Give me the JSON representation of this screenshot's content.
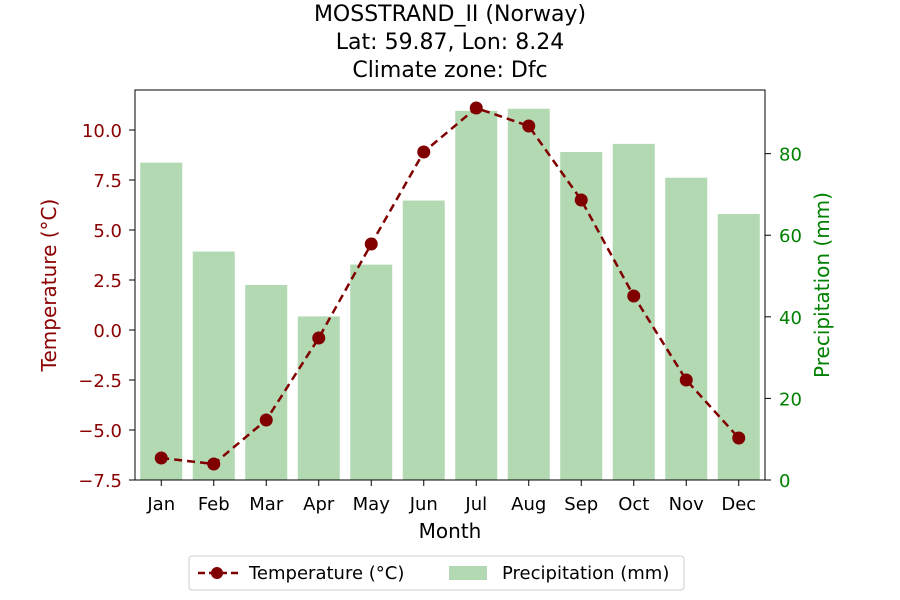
{
  "chart_data": {
    "type": "bar+line",
    "title_lines": [
      "MOSSTRAND_II (Norway)",
      "Lat: 59.87, Lon: 8.24",
      "Climate zone: Dfc"
    ],
    "xlabel": "Month",
    "ylabel_left": "Temperature (°C)",
    "ylabel_right": "Precipitation (mm)",
    "categories": [
      "Jan",
      "Feb",
      "Mar",
      "Apr",
      "May",
      "Jun",
      "Jul",
      "Aug",
      "Sep",
      "Oct",
      "Nov",
      "Dec"
    ],
    "temperature": {
      "name": "Temperature (°C)",
      "values": [
        -6.4,
        -6.7,
        -4.5,
        -0.4,
        4.3,
        8.9,
        11.1,
        10.2,
        6.5,
        1.7,
        -2.5,
        -5.4
      ],
      "color": "#800000",
      "ylim": [
        -7.5,
        12.0
      ],
      "ticks": [
        -7.5,
        -5.0,
        -2.5,
        0.0,
        2.5,
        5.0,
        7.5,
        10.0
      ]
    },
    "precipitation": {
      "name": "Precipitation (mm)",
      "values": [
        77.8,
        56.0,
        47.8,
        40.1,
        52.8,
        68.5,
        90.5,
        91.0,
        80.4,
        82.4,
        74.1,
        65.2
      ],
      "color": "#b2d9b2",
      "ylim": [
        0,
        95.6
      ],
      "ticks": [
        0,
        20,
        40,
        60,
        80
      ]
    },
    "left_axis_color": "#8b0000",
    "right_axis_color": "#008000",
    "legend_position": "bottom-center"
  }
}
